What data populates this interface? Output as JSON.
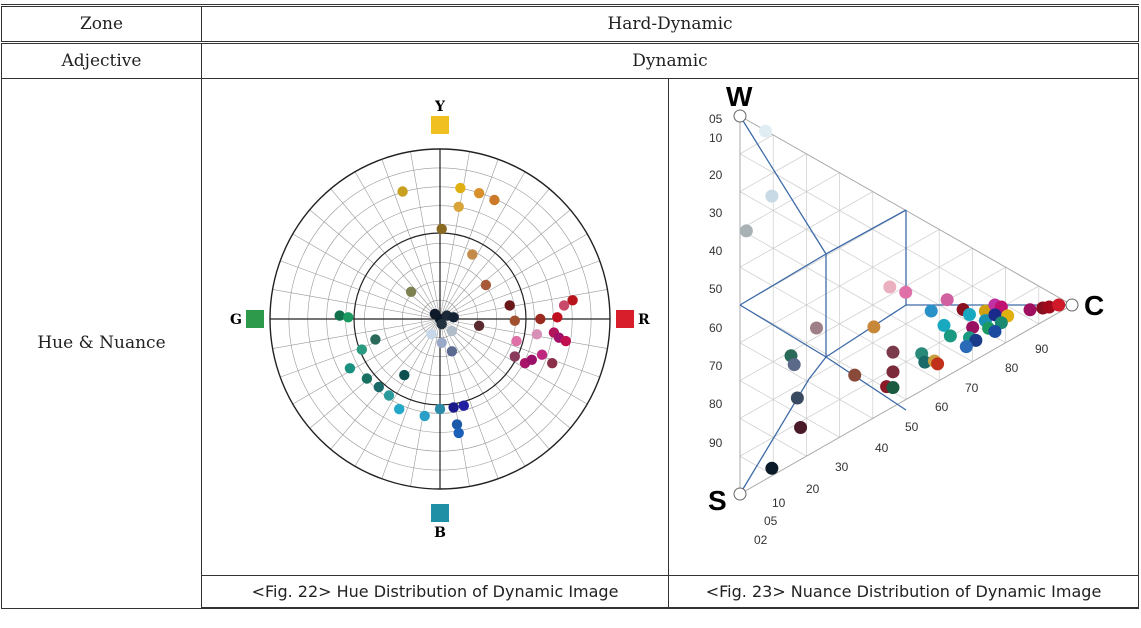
{
  "table": {
    "zone_label": "Zone",
    "zone_value": "Hard-Dynamic",
    "adjective_label": "Adjective",
    "adjective_value": "Dynamic",
    "row_label": "Hue & Nuance"
  },
  "figures": {
    "fig22_caption": "<Fig. 22> Hue Distribution of Dynamic Image",
    "fig23_caption": "<Fig. 23> Nuance Distribution of Dynamic Image"
  },
  "chart_data": [
    {
      "type": "scatter",
      "title": "",
      "axes_labels": {
        "top": "Y",
        "right": "R",
        "bottom": "B",
        "left": "G"
      },
      "axis_colors": {
        "Y": "#f0c020",
        "R": "#d81e2a",
        "B": "#1f8fa6",
        "G": "#2c9a4a"
      },
      "grid": true,
      "coordinate_system": "polar",
      "r_range": [
        0,
        1
      ],
      "points": [
        {
          "x": -0.22,
          "y": 0.75,
          "color": "#c8a020"
        },
        {
          "x": 0.12,
          "y": 0.77,
          "color": "#e0b012"
        },
        {
          "x": 0.23,
          "y": 0.74,
          "color": "#d8902a"
        },
        {
          "x": 0.32,
          "y": 0.7,
          "color": "#cc7a2a"
        },
        {
          "x": 0.11,
          "y": 0.66,
          "color": "#d9a43a"
        },
        {
          "x": 0.01,
          "y": 0.53,
          "color": "#8a6a20"
        },
        {
          "x": 0.19,
          "y": 0.38,
          "color": "#c48a4a"
        },
        {
          "x": 0.27,
          "y": 0.2,
          "color": "#a85a38"
        },
        {
          "x": -0.17,
          "y": 0.16,
          "color": "#7d8050"
        },
        {
          "x": 0.41,
          "y": 0.08,
          "color": "#6a1518"
        },
        {
          "x": 0.44,
          "y": -0.01,
          "color": "#a0502f"
        },
        {
          "x": 0.23,
          "y": -0.04,
          "color": "#5a2a30"
        },
        {
          "x": 0.59,
          "y": 0.0,
          "color": "#9a2a20"
        },
        {
          "x": 0.69,
          "y": 0.01,
          "color": "#c01020"
        },
        {
          "x": 0.78,
          "y": 0.11,
          "color": "#b8141c"
        },
        {
          "x": 0.73,
          "y": 0.08,
          "color": "#c84a6a"
        },
        {
          "x": 0.67,
          "y": -0.08,
          "color": "#b0145a"
        },
        {
          "x": 0.57,
          "y": -0.09,
          "color": "#d890b8"
        },
        {
          "x": 0.7,
          "y": -0.11,
          "color": "#a0106a"
        },
        {
          "x": 0.74,
          "y": -0.13,
          "color": "#c01050"
        },
        {
          "x": 0.45,
          "y": -0.13,
          "color": "#e070a8"
        },
        {
          "x": 0.44,
          "y": -0.22,
          "color": "#8a3a5a"
        },
        {
          "x": 0.6,
          "y": -0.21,
          "color": "#c02880"
        },
        {
          "x": 0.5,
          "y": -0.26,
          "color": "#a81468"
        },
        {
          "x": 0.54,
          "y": -0.24,
          "color": "#9a1068"
        },
        {
          "x": 0.66,
          "y": -0.26,
          "color": "#8a3048"
        },
        {
          "x": -0.59,
          "y": 0.02,
          "color": "#10704a"
        },
        {
          "x": -0.54,
          "y": 0.01,
          "color": "#1a9a60"
        },
        {
          "x": -0.38,
          "y": -0.12,
          "color": "#2a6a5a"
        },
        {
          "x": -0.46,
          "y": -0.18,
          "color": "#2a9a80"
        },
        {
          "x": -0.53,
          "y": -0.29,
          "color": "#1a9080"
        },
        {
          "x": -0.43,
          "y": -0.35,
          "color": "#187060"
        },
        {
          "x": -0.36,
          "y": -0.4,
          "color": "#1a6a6a"
        },
        {
          "x": -0.21,
          "y": -0.33,
          "color": "#0d5050"
        },
        {
          "x": -0.3,
          "y": -0.45,
          "color": "#2a9a9a"
        },
        {
          "x": -0.24,
          "y": -0.53,
          "color": "#22a8c8"
        },
        {
          "x": -0.09,
          "y": -0.57,
          "color": "#2aa0c8"
        },
        {
          "x": 0.0,
          "y": -0.53,
          "color": "#2a8aa8"
        },
        {
          "x": 0.08,
          "y": -0.52,
          "color": "#1a1a8a"
        },
        {
          "x": 0.14,
          "y": -0.51,
          "color": "#2020a0"
        },
        {
          "x": 0.1,
          "y": -0.62,
          "color": "#1a5aa8"
        },
        {
          "x": 0.11,
          "y": -0.67,
          "color": "#1a60b8"
        },
        {
          "x": 0.07,
          "y": -0.19,
          "color": "#5a6a90"
        },
        {
          "x": 0.01,
          "y": -0.14,
          "color": "#9aa8c8"
        },
        {
          "x": -0.05,
          "y": -0.09,
          "color": "#c8d8e8"
        },
        {
          "x": 0.07,
          "y": -0.07,
          "color": "#b0bcc8"
        },
        {
          "x": 0.0,
          "y": 0.0,
          "color": "#0a1828"
        },
        {
          "x": 0.04,
          "y": 0.02,
          "color": "#1a2838"
        },
        {
          "x": -0.03,
          "y": 0.03,
          "color": "#0f1a2a"
        },
        {
          "x": 0.08,
          "y": 0.01,
          "color": "#142236"
        },
        {
          "x": 0.01,
          "y": -0.03,
          "color": "#223040"
        }
      ]
    },
    {
      "type": "scatter",
      "title": "",
      "coordinate_system": "nuance-triangle",
      "vertex_labels": {
        "top": "W",
        "bottom": "S",
        "right": "C"
      },
      "w_axis_ticks": [
        "05",
        "10",
        "20",
        "30",
        "40",
        "50",
        "60",
        "70",
        "80",
        "90"
      ],
      "s_axis_ticks": [
        "02",
        "05",
        "10",
        "20",
        "30",
        "40",
        "50",
        "60",
        "70",
        "80",
        "90"
      ],
      "c_axis_ticks": [
        "10",
        "20",
        "30",
        "40",
        "50",
        "60",
        "70",
        "80",
        "90"
      ],
      "grid": true,
      "points": [
        {
          "c": 0.08,
          "w": 0.9,
          "color": "#e0eef4"
        },
        {
          "c": 0.1,
          "w": 0.72,
          "color": "#c8dae6"
        },
        {
          "c": 0.02,
          "w": 0.6,
          "color": "#a8b2b4"
        },
        {
          "c": 0.47,
          "w": 0.49,
          "color": "#eab0c0"
        },
        {
          "c": 0.24,
          "w": 0.32,
          "color": "#a08088"
        },
        {
          "c": 0.16,
          "w": 0.24,
          "color": "#2a6a58"
        },
        {
          "c": 0.17,
          "w": 0.21,
          "color": "#5a6a88"
        },
        {
          "c": 0.18,
          "w": 0.1,
          "color": "#3a4a60"
        },
        {
          "c": 0.19,
          "w": 0.0,
          "color": "#4a1a28"
        },
        {
          "c": 0.1,
          "w": -0.08,
          "color": "#0a1a28"
        },
        {
          "c": 0.42,
          "w": 0.3,
          "color": "#c8883a"
        },
        {
          "c": 0.36,
          "w": 0.11,
          "color": "#8a4a3a"
        },
        {
          "c": 0.48,
          "w": 0.16,
          "color": "#7a3a4a"
        },
        {
          "c": 0.48,
          "w": 0.06,
          "color": "#7a2a3a"
        },
        {
          "c": 0.46,
          "w": 0.0,
          "color": "#8a1a28"
        },
        {
          "c": 0.48,
          "w": -0.02,
          "color": "#1a5a40"
        },
        {
          "c": 0.57,
          "w": 0.1,
          "color": "#2a8a7a"
        },
        {
          "c": 0.58,
          "w": 0.04,
          "color": "#1a6a6a"
        },
        {
          "c": 0.61,
          "w": 0.02,
          "color": "#c8a040"
        },
        {
          "c": 0.62,
          "w": -0.01,
          "color": "#c0301a"
        },
        {
          "c": 0.6,
          "w": 0.36,
          "color": "#2a90c8"
        },
        {
          "c": 0.65,
          "w": 0.44,
          "color": "#d060a0"
        },
        {
          "c": 0.7,
          "w": 0.36,
          "color": "#8a1020"
        },
        {
          "c": 0.72,
          "w": 0.31,
          "color": "#18a8c0"
        },
        {
          "c": 0.77,
          "w": 0.33,
          "color": "#d0a010"
        },
        {
          "c": 0.8,
          "w": 0.4,
          "color": "#c030a0"
        },
        {
          "c": 0.82,
          "w": 0.37,
          "color": "#c01070"
        },
        {
          "c": 0.64,
          "w": 0.25,
          "color": "#18a8c0"
        },
        {
          "c": 0.66,
          "w": 0.16,
          "color": "#1a9a80"
        },
        {
          "c": 0.73,
          "w": 0.18,
          "color": "#9a1060"
        },
        {
          "c": 0.77,
          "w": 0.22,
          "color": "#1a90b0"
        },
        {
          "c": 0.8,
          "w": 0.27,
          "color": "#1a2a8a"
        },
        {
          "c": 0.84,
          "w": 0.22,
          "color": "#e0b010"
        },
        {
          "c": 0.72,
          "w": 0.09,
          "color": "#1a9a80"
        },
        {
          "c": 0.78,
          "w": 0.12,
          "color": "#1a9a60"
        },
        {
          "c": 0.82,
          "w": 0.14,
          "color": "#1a8a70"
        },
        {
          "c": 0.74,
          "w": 0.04,
          "color": "#1a3a8a"
        },
        {
          "c": 0.8,
          "w": 0.05,
          "color": "#1a4aa0"
        },
        {
          "c": 0.71,
          "w": 0.02,
          "color": "#2a6ab8"
        },
        {
          "c": 0.91,
          "w": 0.26,
          "color": "#a01060"
        },
        {
          "c": 0.95,
          "w": 0.24,
          "color": "#8a1020"
        },
        {
          "c": 0.97,
          "w": 0.22,
          "color": "#a00a1a"
        },
        {
          "c": 1.0,
          "w": 0.24,
          "color": "#d01a2a"
        },
        {
          "c": 0.52,
          "w": 0.47,
          "color": "#e070a8"
        }
      ]
    }
  ]
}
